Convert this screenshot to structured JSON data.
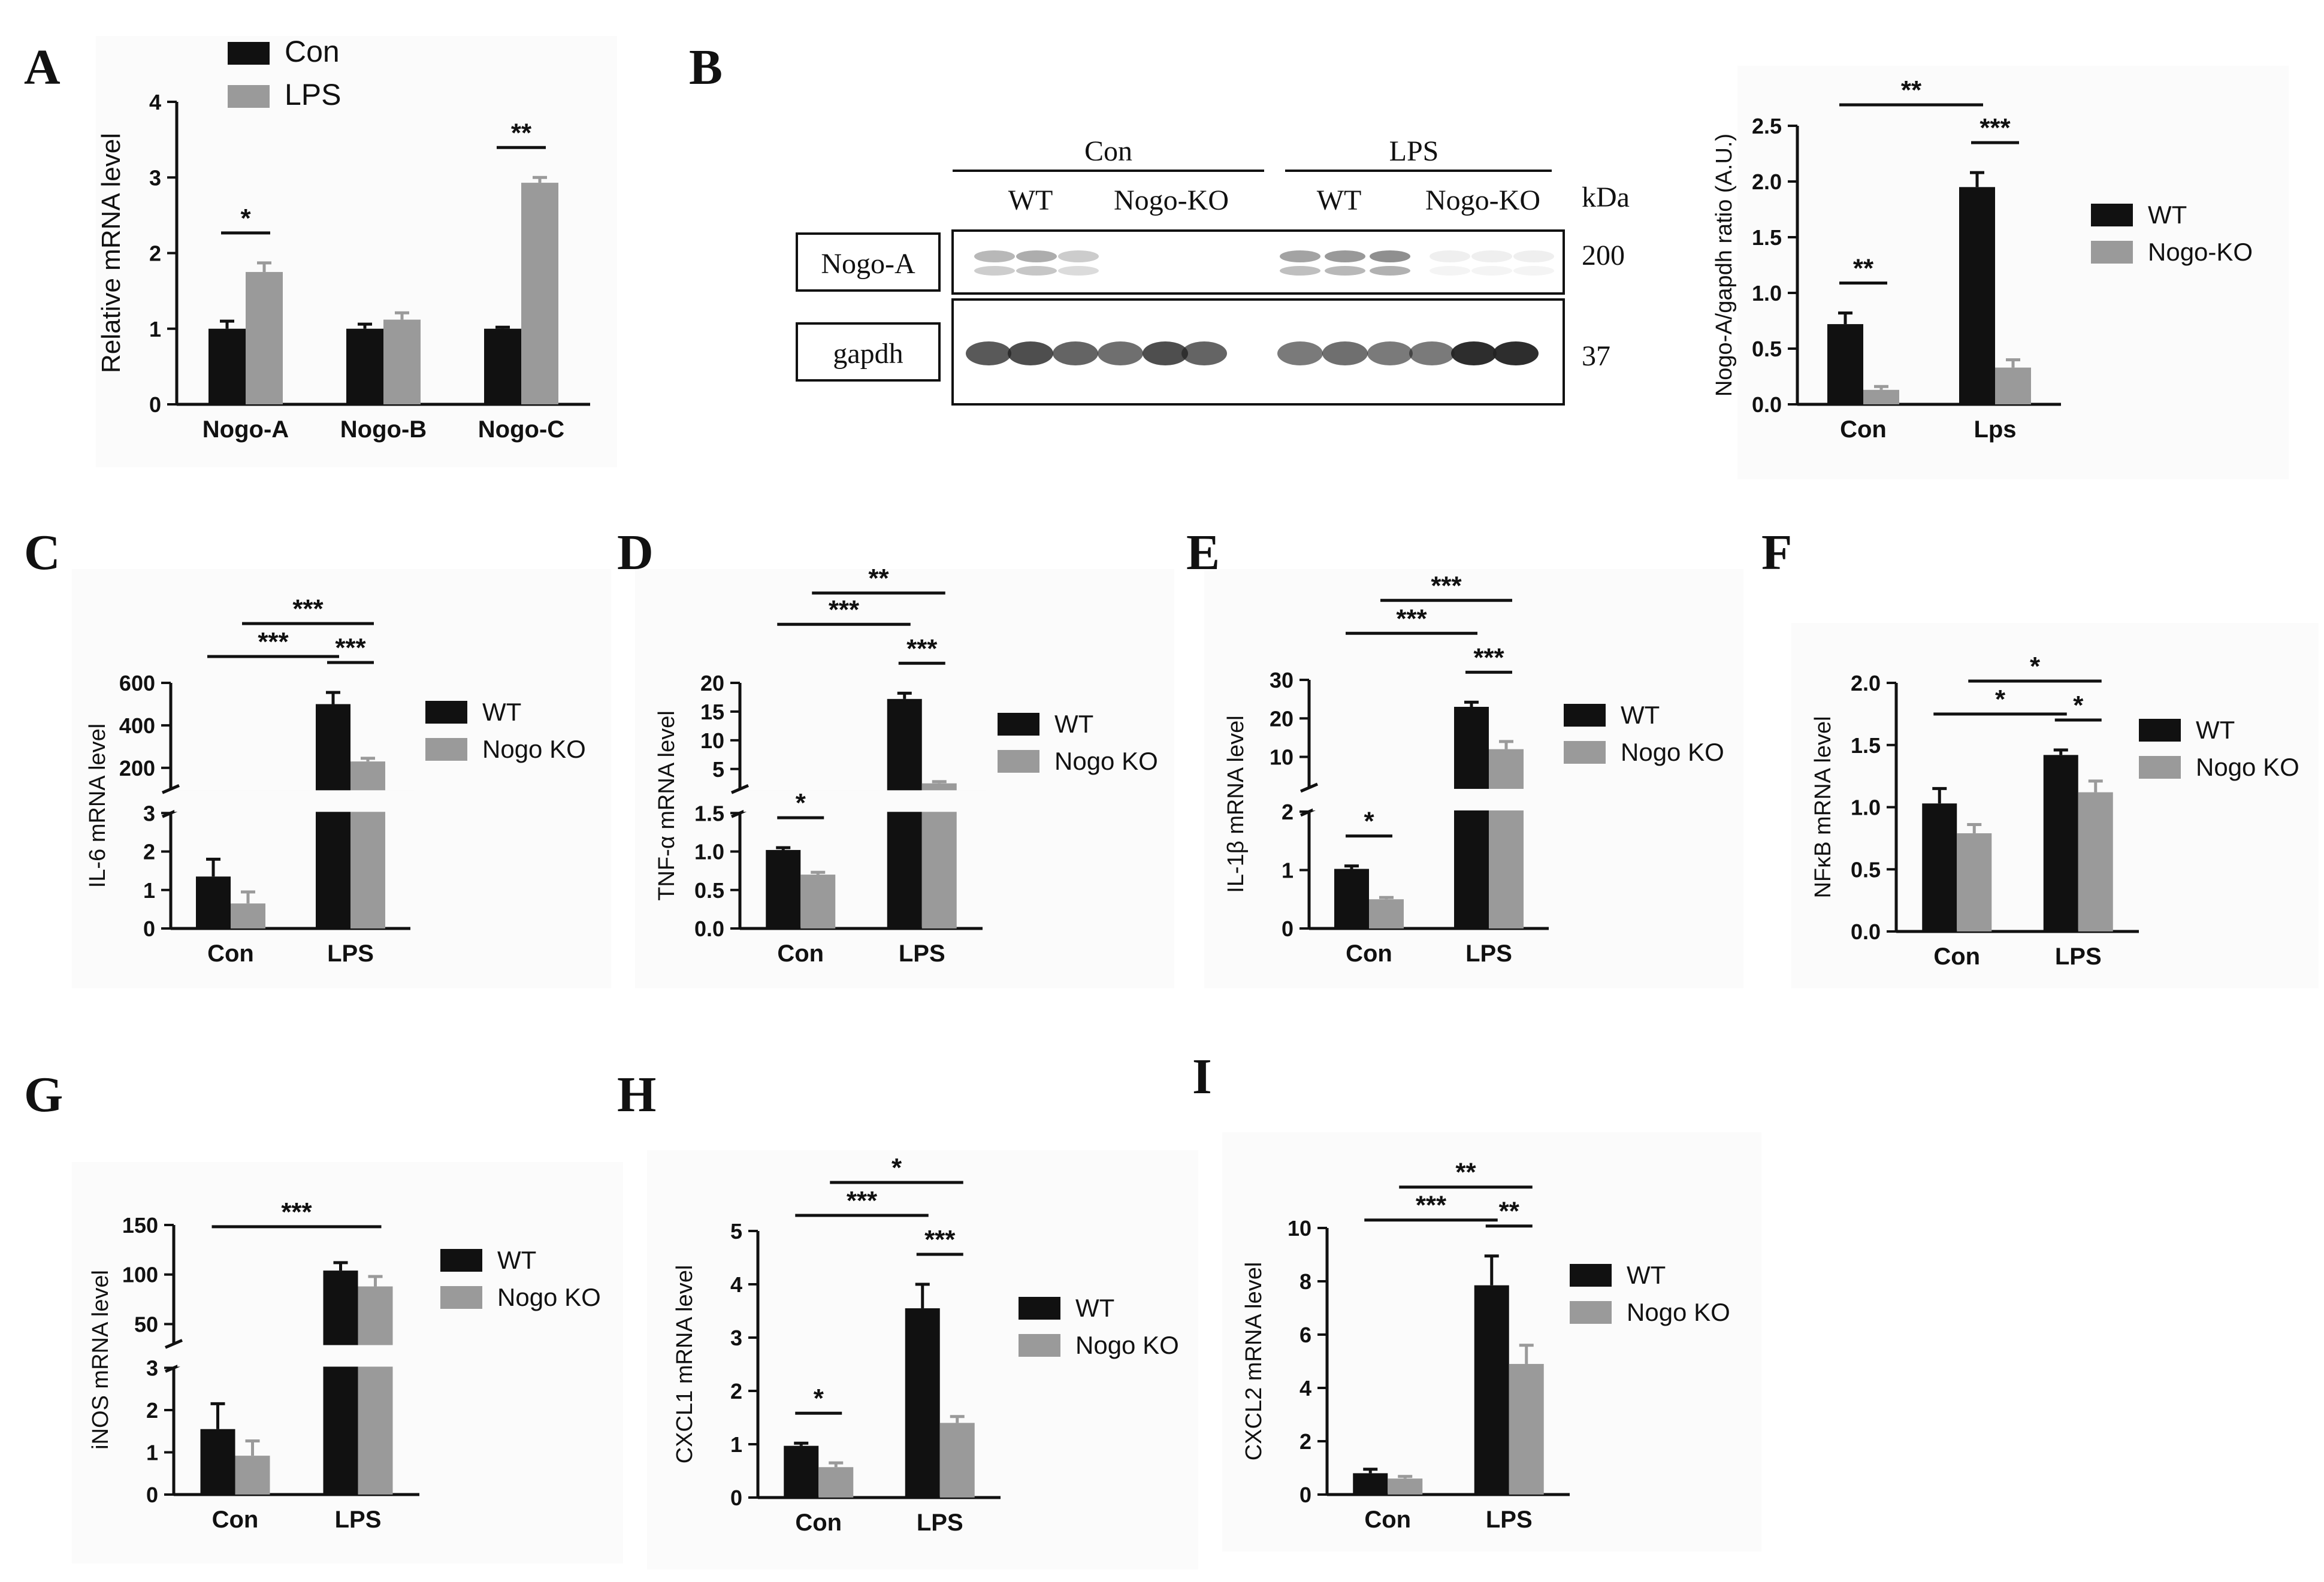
{
  "colors": {
    "wt": "#111111",
    "ko": "#9a9a9a",
    "axis": "#111111",
    "blot_bg": "#ffffff"
  },
  "panels": {
    "A": {
      "letter": "A"
    },
    "B": {
      "letter": "B"
    },
    "C": {
      "letter": "C"
    },
    "D": {
      "letter": "D"
    },
    "E": {
      "letter": "E"
    },
    "F": {
      "letter": "F"
    },
    "G": {
      "letter": "G"
    },
    "H": {
      "letter": "H"
    },
    "I": {
      "letter": "I"
    }
  },
  "blot": {
    "group_labels": [
      "Con",
      "LPS"
    ],
    "lane_labels": [
      "WT",
      "Nogo-KO",
      "WT",
      "Nogo-KO"
    ],
    "unit_label": "kDa",
    "rows": [
      {
        "label": "Nogo-A",
        "kda": "200"
      },
      {
        "label": "gapdh",
        "kda": "37"
      }
    ]
  },
  "chart_data": [
    {
      "id": "A",
      "type": "bar",
      "categories": [
        "Nogo-A",
        "Nogo-B",
        "Nogo-C"
      ],
      "series": [
        {
          "name": "Con",
          "values": [
            1.0,
            1.0,
            1.0
          ],
          "errors": [
            0.1,
            0.06,
            0.02
          ]
        },
        {
          "name": "LPS",
          "values": [
            1.75,
            1.12,
            2.93
          ],
          "errors": [
            0.12,
            0.09,
            0.07
          ]
        }
      ],
      "xlabel": "",
      "ylabel": "Relative mRNA level",
      "ylim": [
        0,
        4
      ],
      "yticks": [
        0,
        1,
        2,
        3,
        4
      ],
      "legend": "top-left",
      "significance": [
        {
          "from": [
            0,
            0
          ],
          "to": [
            0,
            1
          ],
          "label": "*"
        },
        {
          "from": [
            2,
            0
          ],
          "to": [
            2,
            1
          ],
          "label": "**"
        }
      ]
    },
    {
      "id": "B",
      "type": "bar",
      "categories": [
        "Con",
        "Lps"
      ],
      "series": [
        {
          "name": "WT",
          "values": [
            0.72,
            1.95
          ],
          "errors": [
            0.1,
            0.13
          ]
        },
        {
          "name": "Nogo-KO",
          "values": [
            0.13,
            0.33
          ],
          "errors": [
            0.03,
            0.07
          ]
        }
      ],
      "xlabel": "",
      "ylabel": "Nogo-A/gapdh ratio (A.U.)",
      "ylim": [
        0,
        2.5
      ],
      "yticks": [
        "0.0",
        "0.5",
        "1.0",
        "1.5",
        "2.0",
        "2.5"
      ],
      "legend": "right",
      "significance": [
        {
          "from": [
            0,
            0
          ],
          "to": [
            0,
            1
          ],
          "label": "**"
        },
        {
          "from": [
            1,
            0
          ],
          "to": [
            1,
            1
          ],
          "label": "***"
        },
        {
          "from": [
            0,
            0
          ],
          "to": [
            1,
            0
          ],
          "label": "**"
        }
      ]
    },
    {
      "id": "C",
      "type": "bar",
      "categories": [
        "Con",
        "LPS"
      ],
      "series": [
        {
          "name": "WT",
          "values": [
            1.35,
            500
          ],
          "errors": [
            0.45,
            55
          ]
        },
        {
          "name": "Nogo KO",
          "values": [
            0.65,
            230
          ],
          "errors": [
            0.3,
            15
          ]
        }
      ],
      "xlabel": "",
      "ylabel": "IL-6 mRNA level",
      "broken_axis": {
        "lower": [
          0,
          3
        ],
        "upper": [
          100,
          600
        ],
        "lower_ticks": [
          0,
          1,
          2,
          3
        ],
        "upper_ticks": [
          200,
          400,
          600
        ]
      },
      "legend": "right",
      "significance": [
        {
          "from": [
            0,
            0
          ],
          "to": [
            1,
            0
          ],
          "label": "***"
        },
        {
          "from": [
            0,
            1
          ],
          "to": [
            1,
            1
          ],
          "label": "***"
        },
        {
          "from": [
            1,
            0
          ],
          "to": [
            1,
            1
          ],
          "label": "***"
        }
      ]
    },
    {
      "id": "D",
      "type": "bar",
      "categories": [
        "Con",
        "LPS"
      ],
      "series": [
        {
          "name": "WT",
          "values": [
            1.02,
            17.2
          ],
          "errors": [
            0.03,
            1.0
          ]
        },
        {
          "name": "Nogo KO",
          "values": [
            0.7,
            2.5
          ],
          "errors": [
            0.03,
            0.3
          ]
        }
      ],
      "xlabel": "",
      "ylabel": "TNF-α mRNA level",
      "broken_axis": {
        "lower": [
          0,
          1.5
        ],
        "upper": [
          1.5,
          20
        ],
        "lower_ticks": [
          "0.0",
          "0.5",
          "1.0",
          "1.5"
        ],
        "upper_ticks": [
          5,
          10,
          15,
          20
        ]
      },
      "legend": "right",
      "significance": [
        {
          "from": [
            0,
            0
          ],
          "to": [
            0,
            1
          ],
          "label": "*"
        },
        {
          "from": [
            0,
            0
          ],
          "to": [
            1,
            0
          ],
          "label": "***"
        },
        {
          "from": [
            0,
            1
          ],
          "to": [
            1,
            1
          ],
          "label": "**"
        },
        {
          "from": [
            1,
            0
          ],
          "to": [
            1,
            1
          ],
          "label": "***"
        }
      ]
    },
    {
      "id": "E",
      "type": "bar",
      "categories": [
        "Con",
        "LPS"
      ],
      "series": [
        {
          "name": "WT",
          "values": [
            1.02,
            23
          ],
          "errors": [
            0.05,
            1.2
          ]
        },
        {
          "name": "Nogo KO",
          "values": [
            0.5,
            12
          ],
          "errors": [
            0.03,
            2.0
          ]
        }
      ],
      "xlabel": "",
      "ylabel": "IL-1β mRNA level",
      "broken_axis": {
        "lower": [
          0,
          2
        ],
        "upper": [
          2,
          30
        ],
        "lower_ticks": [
          0,
          1,
          2
        ],
        "upper_ticks": [
          10,
          20,
          30
        ]
      },
      "legend": "right",
      "significance": [
        {
          "from": [
            0,
            0
          ],
          "to": [
            0,
            1
          ],
          "label": "*"
        },
        {
          "from": [
            0,
            0
          ],
          "to": [
            1,
            0
          ],
          "label": "***"
        },
        {
          "from": [
            0,
            1
          ],
          "to": [
            1,
            1
          ],
          "label": "***"
        },
        {
          "from": [
            1,
            0
          ],
          "to": [
            1,
            1
          ],
          "label": "***"
        }
      ]
    },
    {
      "id": "F",
      "type": "bar",
      "categories": [
        "Con",
        "LPS"
      ],
      "series": [
        {
          "name": "WT",
          "values": [
            1.03,
            1.42
          ],
          "errors": [
            0.12,
            0.04
          ]
        },
        {
          "name": "Nogo KO",
          "values": [
            0.79,
            1.12
          ],
          "errors": [
            0.07,
            0.09
          ]
        }
      ],
      "xlabel": "",
      "ylabel": "NFκB mRNA level",
      "ylim": [
        0,
        2
      ],
      "yticks": [
        "0.0",
        "0.5",
        "1.0",
        "1.5",
        "2.0"
      ],
      "legend": "right",
      "significance": [
        {
          "from": [
            0,
            0
          ],
          "to": [
            1,
            0
          ],
          "label": "*"
        },
        {
          "from": [
            0,
            1
          ],
          "to": [
            1,
            1
          ],
          "label": "*"
        },
        {
          "from": [
            1,
            0
          ],
          "to": [
            1,
            1
          ],
          "label": "*"
        }
      ]
    },
    {
      "id": "G",
      "type": "bar",
      "categories": [
        "Con",
        "LPS"
      ],
      "series": [
        {
          "name": "WT",
          "values": [
            1.55,
            104
          ],
          "errors": [
            0.6,
            8
          ]
        },
        {
          "name": "Nogo KO",
          "values": [
            0.92,
            88
          ],
          "errors": [
            0.35,
            10
          ]
        }
      ],
      "xlabel": "",
      "ylabel": "iNOS mRNA level",
      "broken_axis": {
        "lower": [
          0,
          3
        ],
        "upper": [
          30,
          150
        ],
        "lower_ticks": [
          0,
          1,
          2,
          3
        ],
        "upper_ticks": [
          50,
          100,
          150
        ]
      },
      "legend": "right",
      "significance": [
        {
          "from": [
            0,
            0
          ],
          "to": [
            1,
            1
          ],
          "label": "***"
        }
      ]
    },
    {
      "id": "H",
      "type": "bar",
      "categories": [
        "Con",
        "LPS"
      ],
      "series": [
        {
          "name": "WT",
          "values": [
            0.97,
            3.55
          ],
          "errors": [
            0.05,
            0.45
          ]
        },
        {
          "name": "Nogo KO",
          "values": [
            0.57,
            1.4
          ],
          "errors": [
            0.08,
            0.12
          ]
        }
      ],
      "xlabel": "",
      "ylabel": "CXCL1 mRNA level",
      "ylim": [
        0,
        5
      ],
      "yticks": [
        0,
        1,
        2,
        3,
        4,
        5
      ],
      "legend": "right",
      "significance": [
        {
          "from": [
            0,
            0
          ],
          "to": [
            0,
            1
          ],
          "label": "*"
        },
        {
          "from": [
            0,
            0
          ],
          "to": [
            1,
            0
          ],
          "label": "***"
        },
        {
          "from": [
            0,
            1
          ],
          "to": [
            1,
            1
          ],
          "label": "*"
        },
        {
          "from": [
            1,
            0
          ],
          "to": [
            1,
            1
          ],
          "label": "***"
        }
      ]
    },
    {
      "id": "I",
      "type": "bar",
      "categories": [
        "Con",
        "LPS"
      ],
      "series": [
        {
          "name": "WT",
          "values": [
            0.8,
            7.85
          ],
          "errors": [
            0.15,
            1.1
          ]
        },
        {
          "name": "Nogo KO",
          "values": [
            0.6,
            4.9
          ],
          "errors": [
            0.08,
            0.7
          ]
        }
      ],
      "xlabel": "",
      "ylabel": "CXCL2 mRNA level",
      "ylim": [
        0,
        10
      ],
      "yticks": [
        0,
        2,
        4,
        6,
        8,
        10
      ],
      "legend": "right",
      "significance": [
        {
          "from": [
            0,
            0
          ],
          "to": [
            1,
            0
          ],
          "label": "***"
        },
        {
          "from": [
            0,
            1
          ],
          "to": [
            1,
            1
          ],
          "label": "**"
        },
        {
          "from": [
            1,
            0
          ],
          "to": [
            1,
            1
          ],
          "label": "**"
        }
      ]
    }
  ]
}
